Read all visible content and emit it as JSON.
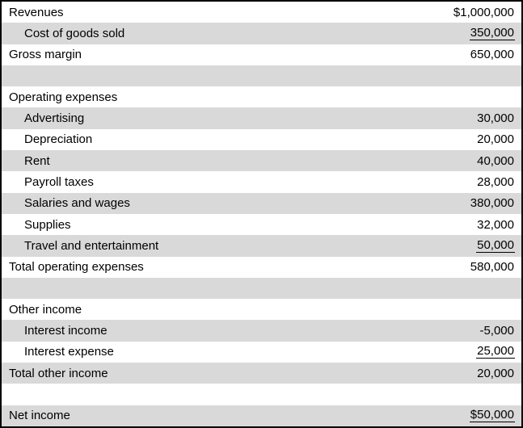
{
  "document": {
    "kind": "income-statement-table",
    "colors": {
      "stripe": "#d9d9d9",
      "background": "#ffffff",
      "border": "#000000",
      "text": "#000000"
    },
    "rows": [
      {
        "label": "Revenues",
        "value": "$1,000,000",
        "indent": false,
        "underline": false,
        "shaded": false
      },
      {
        "label": "Cost of goods sold",
        "value": "350,000",
        "indent": true,
        "underline": true,
        "shaded": true
      },
      {
        "label": "Gross margin",
        "value": "650,000",
        "indent": false,
        "underline": false,
        "shaded": false
      },
      {
        "label": "",
        "value": "",
        "indent": false,
        "underline": false,
        "shaded": true
      },
      {
        "label": "Operating expenses",
        "value": "",
        "indent": false,
        "underline": false,
        "shaded": false
      },
      {
        "label": "Advertising",
        "value": "30,000",
        "indent": true,
        "underline": false,
        "shaded": true
      },
      {
        "label": "Depreciation",
        "value": "20,000",
        "indent": true,
        "underline": false,
        "shaded": false
      },
      {
        "label": "Rent",
        "value": "40,000",
        "indent": true,
        "underline": false,
        "shaded": true
      },
      {
        "label": "Payroll taxes",
        "value": "28,000",
        "indent": true,
        "underline": false,
        "shaded": false
      },
      {
        "label": "Salaries and wages",
        "value": "380,000",
        "indent": true,
        "underline": false,
        "shaded": true
      },
      {
        "label": "Supplies",
        "value": "32,000",
        "indent": true,
        "underline": false,
        "shaded": false
      },
      {
        "label": "Travel and entertainment",
        "value": "50,000",
        "indent": true,
        "underline": true,
        "shaded": true
      },
      {
        "label": "Total operating expenses",
        "value": "580,000",
        "indent": false,
        "underline": false,
        "shaded": false
      },
      {
        "label": "",
        "value": "",
        "indent": false,
        "underline": false,
        "shaded": true
      },
      {
        "label": "Other income",
        "value": "",
        "indent": false,
        "underline": false,
        "shaded": false
      },
      {
        "label": "Interest income",
        "value": "-5,000",
        "indent": true,
        "underline": false,
        "shaded": true
      },
      {
        "label": "Interest expense",
        "value": "25,000",
        "indent": true,
        "underline": true,
        "shaded": false
      },
      {
        "label": "Total other income",
        "value": "20,000",
        "indent": false,
        "underline": false,
        "shaded": true
      },
      {
        "label": "",
        "value": "",
        "indent": false,
        "underline": false,
        "shaded": false
      },
      {
        "label": "Net income",
        "value": "$50,000",
        "indent": false,
        "underline": true,
        "shaded": true
      }
    ]
  }
}
